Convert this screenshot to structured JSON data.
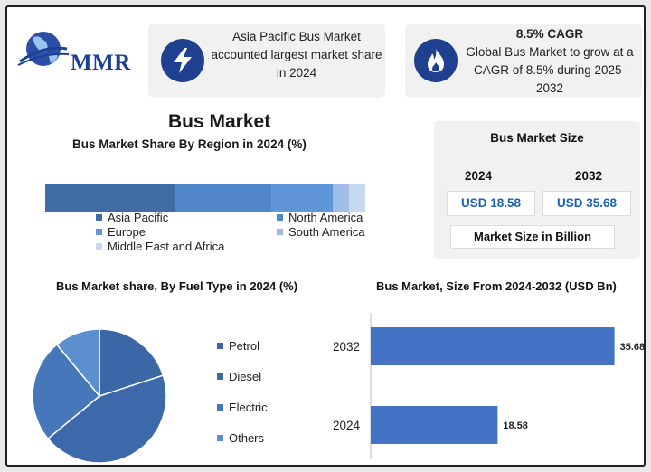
{
  "logo": {
    "text": "MMR"
  },
  "card_asia": {
    "icon": "lightning-icon",
    "text": "Asia Pacific Bus Market accounted largest market share in 2024"
  },
  "card_cagr": {
    "icon": "flame-icon",
    "title": "8.5% CAGR",
    "text": "Global Bus Market to grow at a CAGR of 8.5% during 2025-2032"
  },
  "main_title": "Bus Market",
  "market_size": {
    "title": "Bus Market Size",
    "year1": "2024",
    "year2": "2032",
    "value1": "USD 18.58",
    "value2": "USD 35.68",
    "footer": "Market Size in Billion"
  },
  "colors": {
    "asia_pacific": "#3f6ea7",
    "north_america": "#4f87c8",
    "europe": "#5f96d8",
    "south_america": "#9fbde6",
    "mea": "#c7d8ef",
    "petrol": "#3b67a6",
    "diesel": "#3d68aa",
    "electric": "#4677bb",
    "others": "#5c8fd0",
    "bar": "#4472c4"
  },
  "chart_data": [
    {
      "type": "bar",
      "orientation": "horizontal-stacked",
      "title": "Bus Market Share By Region in 2024 (%)",
      "categories": [
        "Asia Pacific",
        "North America",
        "Europe",
        "South America",
        "Middle East and Africa"
      ],
      "values": [
        40,
        30,
        19,
        5,
        5
      ],
      "legend": "bottom"
    },
    {
      "type": "pie",
      "title": "Bus Market share, By Fuel Type in 2024  (%)",
      "categories": [
        "Petrol",
        "Diesel",
        "Electric",
        "Others"
      ],
      "values": [
        20,
        44,
        25,
        11
      ],
      "legend": "right"
    },
    {
      "type": "bar",
      "orientation": "horizontal",
      "title": "Bus Market, Size From 2024-2032 (USD Bn)",
      "categories": [
        "2032",
        "2024"
      ],
      "values": [
        35.68,
        18.58
      ],
      "data_labels": [
        "35.68",
        "18.58"
      ],
      "xlim": [
        0,
        36
      ]
    }
  ]
}
